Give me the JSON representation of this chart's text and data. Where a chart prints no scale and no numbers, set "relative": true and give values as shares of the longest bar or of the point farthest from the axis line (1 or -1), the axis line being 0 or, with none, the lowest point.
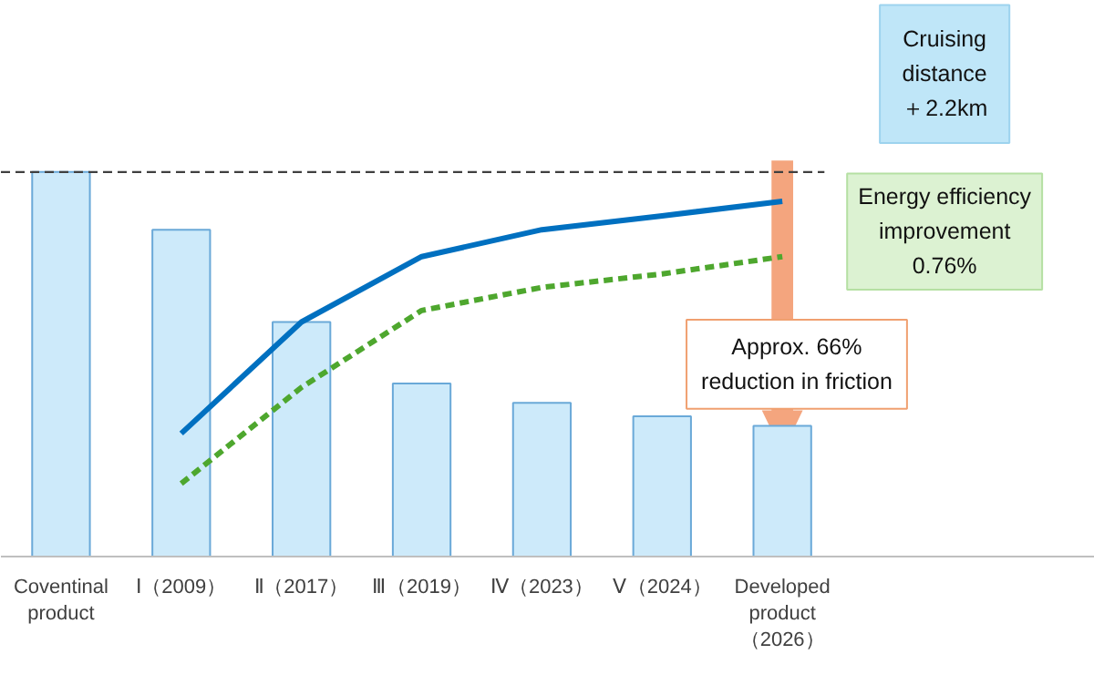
{
  "chart_data": {
    "type": "bar",
    "relative": true,
    "grid": false,
    "categories": [
      "Coventinal\nproduct",
      "Ⅰ（2009）",
      "Ⅱ（2017）",
      "Ⅲ（2019）",
      "Ⅳ（2023）",
      "Ⅴ（2024）",
      "Developed\nproduct\n（2026）"
    ],
    "series": [
      {
        "color": "#cdeafa",
        "values": [
          1.0,
          0.85,
          0.61,
          0.45,
          0.4,
          0.365,
          0.34
        ]
      },
      {
        "type": "line",
        "color": "#0070c0",
        "line_style": "solid",
        "values": [
          null,
          0.32,
          0.61,
          0.78,
          0.85,
          0.886,
          0.924
        ]
      },
      {
        "type": "line",
        "color": "#4ea72e",
        "line_style": "dashed",
        "values": [
          null,
          0.19,
          0.44,
          0.64,
          0.7,
          0.735,
          0.78
        ]
      }
    ],
    "ref_lines": [
      {
        "axis": "y",
        "value": 1.0,
        "color": "#404040",
        "line_style": "dashed"
      }
    ],
    "annotations": [
      "Cruising\ndistance\n＋2.2km",
      "Energy efficiency\nimprovement\n0.76%",
      "Approx. 66%\nreduction in friction"
    ]
  }
}
